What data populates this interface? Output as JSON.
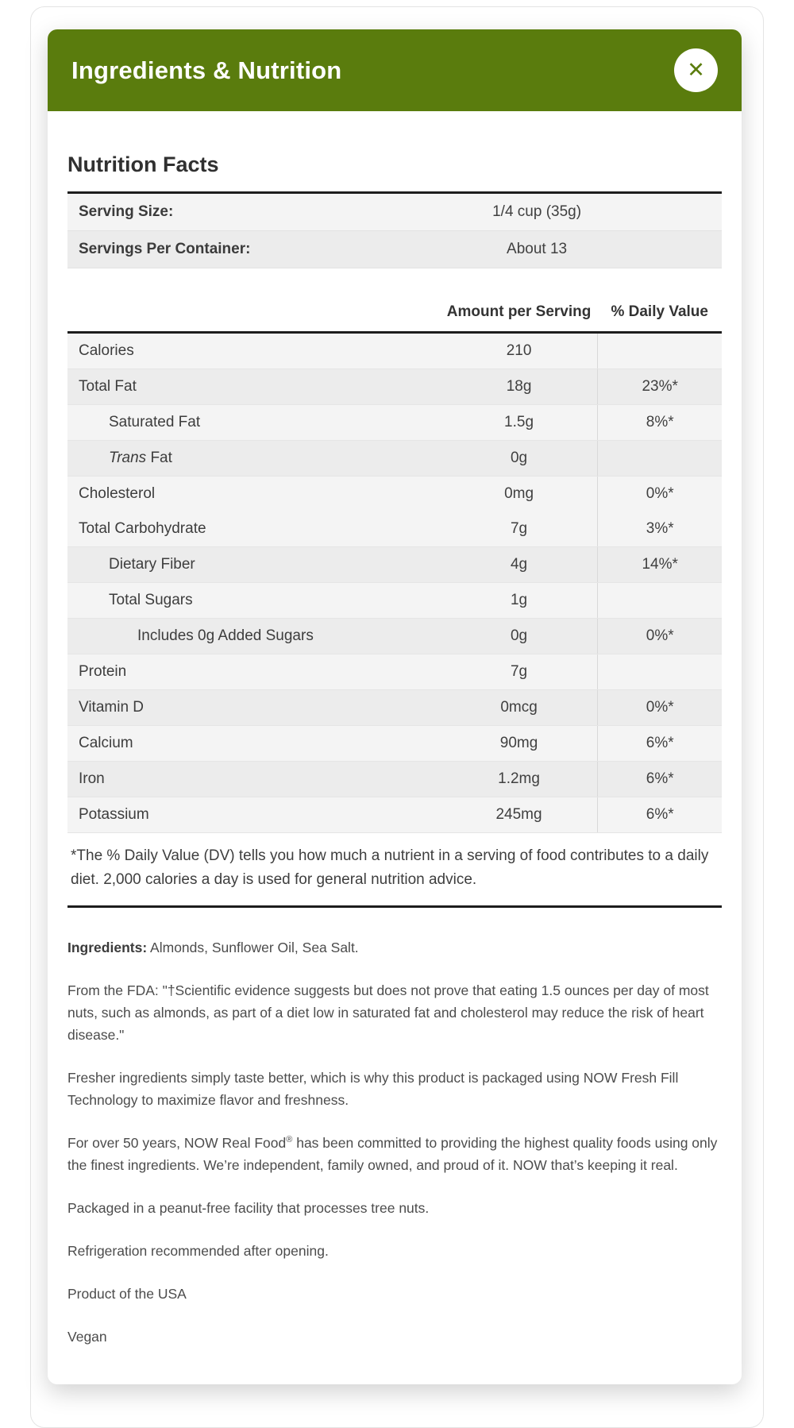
{
  "colors": {
    "header_green": "#5a7c0d",
    "thick_rule": "#1d1d1d"
  },
  "modal": {
    "title": "Ingredients & Nutrition",
    "close_icon": "✕"
  },
  "nutrition": {
    "heading": "Nutrition Facts",
    "serving_rows": [
      {
        "label": "Serving Size:",
        "value": "1/4 cup (35g)"
      },
      {
        "label": "Servings Per Container:",
        "value": "About 13"
      }
    ],
    "columns": {
      "amount": "Amount per Serving",
      "dv": "% Daily Value"
    },
    "rows": [
      {
        "label": "Calories",
        "amount": "210",
        "dv": ""
      },
      {
        "label": "Total Fat",
        "amount": "18g",
        "dv": "23%*"
      },
      {
        "label": "Saturated Fat",
        "amount": "1.5g",
        "dv": "8%*"
      },
      {
        "italic": "Trans",
        "rest": " Fat",
        "amount": "0g",
        "dv": ""
      },
      {
        "label": "Cholesterol",
        "amount": "0mg",
        "dv": "0%*"
      },
      {
        "label": "Total Carbohydrate",
        "amount": "7g",
        "dv": "3%*"
      },
      {
        "label": "Dietary Fiber",
        "amount": "4g",
        "dv": "14%*"
      },
      {
        "label": "Total Sugars",
        "amount": "1g",
        "dv": ""
      },
      {
        "label": "Includes 0g Added Sugars",
        "amount": "0g",
        "dv": "0%*"
      },
      {
        "label": "Protein",
        "amount": "7g",
        "dv": ""
      },
      {
        "label": "Vitamin D",
        "amount": "0mcg",
        "dv": "0%*"
      },
      {
        "label": "Calcium",
        "amount": "90mg",
        "dv": "6%*"
      },
      {
        "label": "Iron",
        "amount": "1.2mg",
        "dv": "6%*"
      },
      {
        "label": "Potassium",
        "amount": "245mg",
        "dv": "6%*"
      }
    ],
    "footnote": "*The % Daily Value (DV) tells you how much a nutrient in a serving of food contributes to a daily diet. 2,000 calories a day is used for general nutrition advice."
  },
  "description": {
    "ingredients_label": "Ingredients:",
    "ingredients_text": " Almonds, Sunflower Oil, Sea Salt.",
    "fda": "From the FDA: \"†Scientific evidence suggests but does not prove that eating 1.5 ounces per day of most nuts, such as almonds, as part of a diet low in saturated fat and cholesterol may reduce the risk of heart disease.\"",
    "fresh_fill": "Fresher ingredients simply taste better, which is why this product is packaged using NOW Fresh Fill Technology to maximize flavor and freshness.",
    "brand_name": "For over 50 years, NOW Real Food",
    "brand_mark": "®",
    "brand_rest": " has been committed to providing the highest quality foods using only the finest ingredients. We’re independent, family owned, and proud of it. NOW that’s keeping it real.",
    "peanut_free": "Packaged in a peanut-free facility that processes tree nuts.",
    "refrigeration": "Refrigeration recommended after opening.",
    "origin": "Product of the USA",
    "vegan": "Vegan"
  }
}
